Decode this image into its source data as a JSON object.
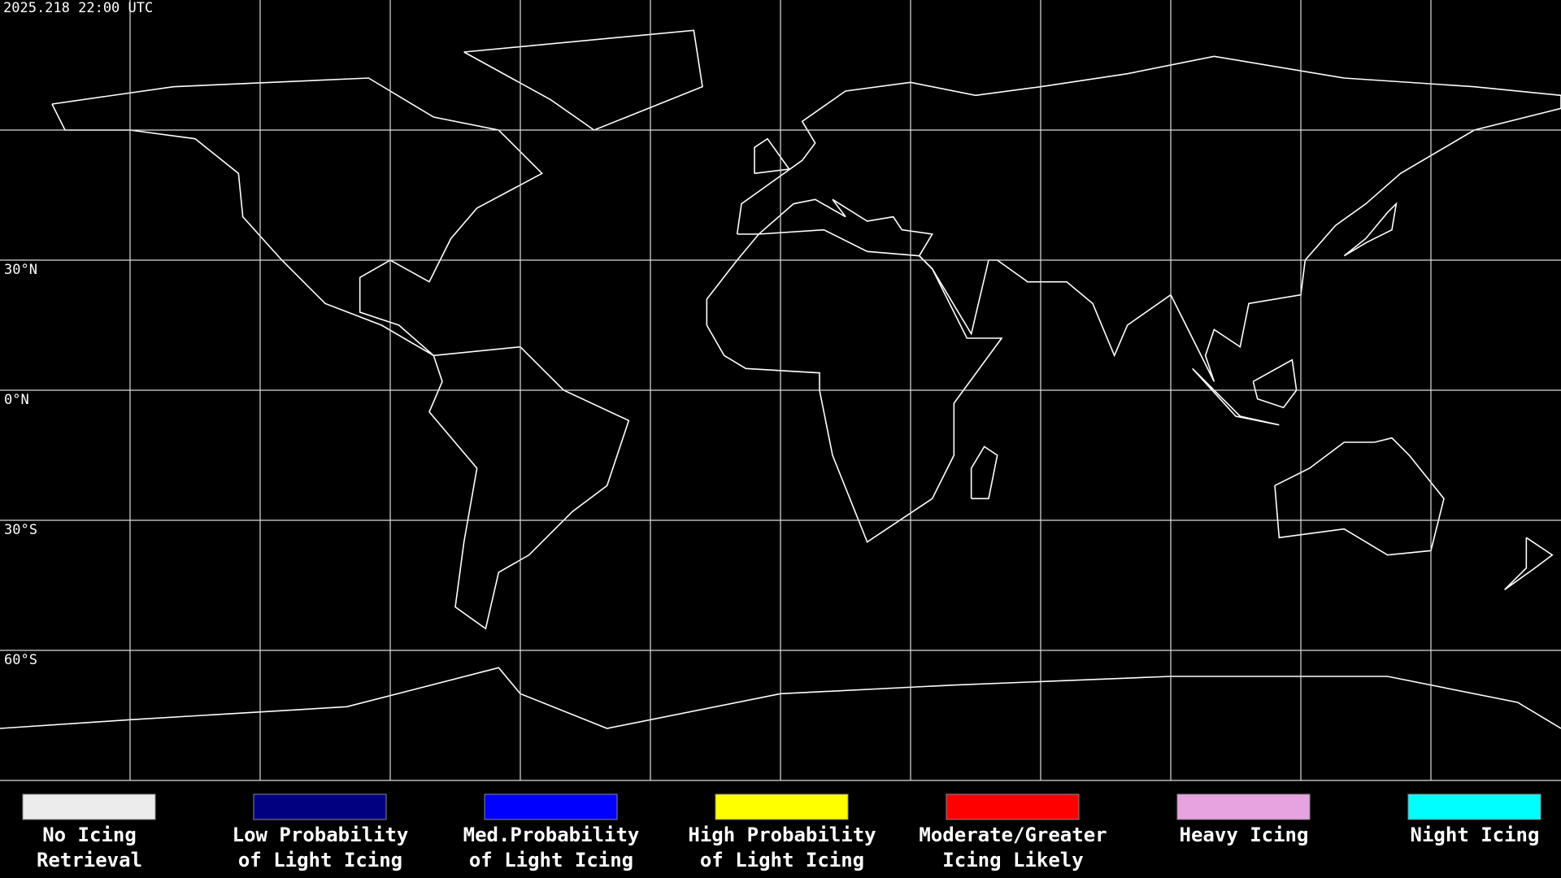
{
  "header": {
    "timestamp": "2025.218 22:00 UTC"
  },
  "map": {
    "latitude_labels": [
      "30°N",
      "0°N",
      "30°S",
      "60°S"
    ]
  },
  "legend": {
    "items": [
      {
        "lines": [
          "No Icing",
          "Retrieval"
        ],
        "color": "#ececec"
      },
      {
        "lines": [
          "Low Probability",
          "of Light Icing"
        ],
        "color": "#000080"
      },
      {
        "lines": [
          "Med.Probability",
          "of Light Icing"
        ],
        "color": "#0000ff"
      },
      {
        "lines": [
          "High Probability",
          "of Light Icing"
        ],
        "color": "#ffff00"
      },
      {
        "lines": [
          "Moderate/Greater",
          "Icing Likely"
        ],
        "color": "#ff0000"
      },
      {
        "lines": [
          "Heavy Icing"
        ],
        "color": "#e6a3e0"
      },
      {
        "lines": [
          "Night Icing"
        ],
        "color": "#00ffff"
      }
    ]
  }
}
